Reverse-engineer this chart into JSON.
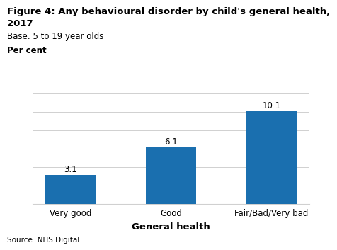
{
  "title_line1": "Figure 4: Any behavioural disorder by child's general health,",
  "title_line2": "2017",
  "base_text": "Base: 5 to 19 year olds",
  "ylabel": "Per cent",
  "xlabel": "General health",
  "source": "Source: NHS Digital",
  "categories": [
    "Very good",
    "Good",
    "Fair/Bad/Very bad"
  ],
  "values": [
    3.1,
    6.1,
    10.1
  ],
  "bar_color": "#1a6faf",
  "ylim": [
    0,
    12
  ],
  "yticks": [
    0,
    2,
    4,
    6,
    8,
    10,
    12
  ],
  "background_color": "#ffffff",
  "title_fontsize": 9.5,
  "base_fontsize": 8.5,
  "ylabel_fontsize": 8.5,
  "xlabel_fontsize": 9.5,
  "tick_fontsize": 8.5,
  "value_fontsize": 8.5,
  "source_fontsize": 7.5
}
